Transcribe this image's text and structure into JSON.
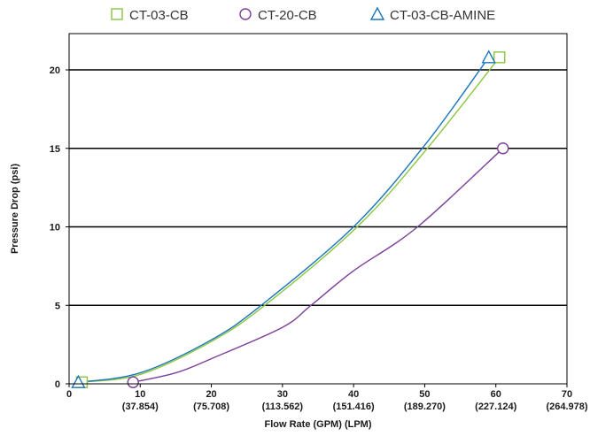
{
  "chart_data": {
    "type": "line",
    "title": "",
    "xlabel": "Flow Rate (GPM) (LPM)",
    "ylabel": "Pressure Drop (psi)",
    "xlim": [
      0,
      70
    ],
    "ylim": [
      0,
      22
    ],
    "grid": "horizontal",
    "legend_position": "top",
    "x_ticks": [
      0,
      10,
      20,
      30,
      40,
      50,
      60,
      70
    ],
    "x_tick_labels": [
      "0",
      "10",
      "20",
      "30",
      "40",
      "50",
      "60",
      "70"
    ],
    "x_tick_sublabels": [
      "",
      "(37.854)",
      "(75.708)",
      "(113.562)",
      "(151.416)",
      "(189.270)",
      "(227.124)",
      "(264.978)"
    ],
    "y_ticks": [
      0,
      5,
      10,
      15,
      20
    ],
    "y_tick_labels": [
      "0",
      "5",
      "10",
      "15",
      "20"
    ],
    "series": [
      {
        "name": "CT-03-CB",
        "color": "#8cc63f",
        "marker": "square",
        "x": [
          1.8,
          60.5
        ],
        "y": [
          0.1,
          20.8
        ],
        "curve": [
          [
            1.8,
            0.1
          ],
          [
            10,
            0.6
          ],
          [
            20,
            2.7
          ],
          [
            27.5,
            5.0
          ],
          [
            40.5,
            10.0
          ],
          [
            50,
            14.8
          ],
          [
            60.5,
            20.8
          ]
        ]
      },
      {
        "name": "CT-20-CB",
        "color": "#7b3f98",
        "marker": "circle",
        "x": [
          9,
          61
        ],
        "y": [
          0.1,
          15.0
        ],
        "curve": [
          [
            9,
            0.1
          ],
          [
            15,
            0.7
          ],
          [
            20,
            1.6
          ],
          [
            30,
            3.6
          ],
          [
            34,
            5.0
          ],
          [
            40,
            7.2
          ],
          [
            49,
            10.0
          ],
          [
            61,
            15.0
          ]
        ]
      },
      {
        "name": "CT-03-CB-AMINE",
        "color": "#1b75bb",
        "marker": "triangle",
        "x": [
          1.3,
          59
        ],
        "y": [
          0.1,
          20.8
        ],
        "curve": [
          [
            1.3,
            0.1
          ],
          [
            10,
            0.7
          ],
          [
            20,
            2.8
          ],
          [
            27,
            5.0
          ],
          [
            40,
            10.0
          ],
          [
            50,
            15.2
          ],
          [
            59,
            20.8
          ]
        ]
      }
    ]
  }
}
